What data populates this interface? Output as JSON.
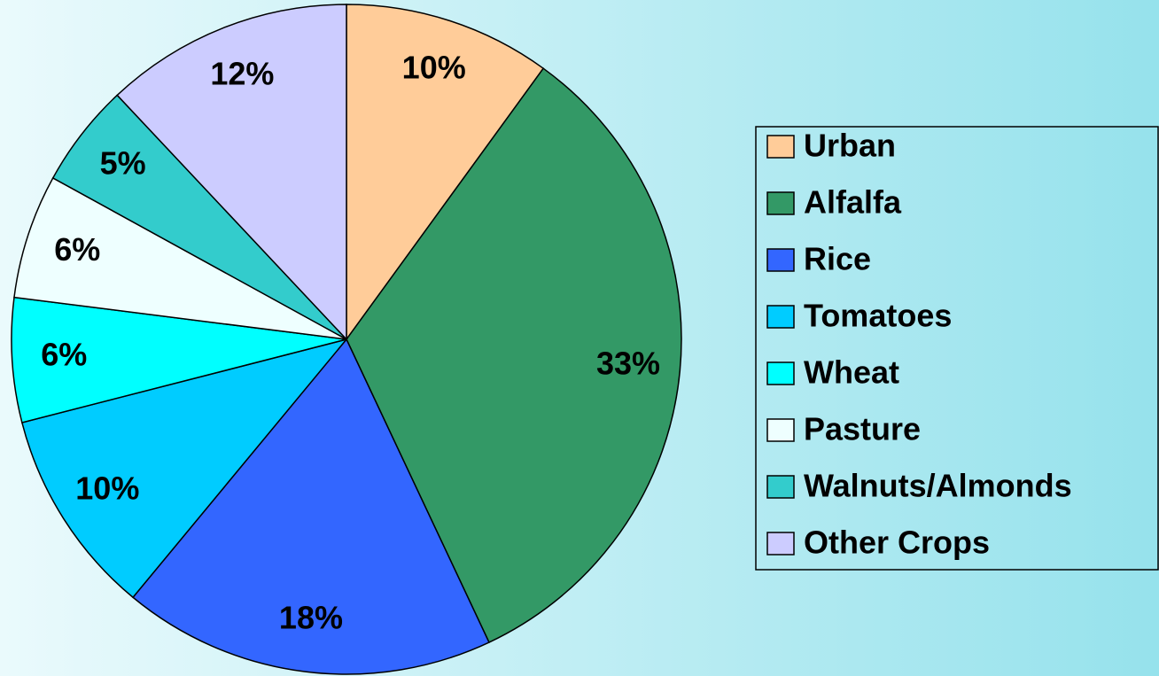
{
  "chart_data": {
    "type": "pie",
    "categories": [
      "Urban",
      "Alfalfa",
      "Rice",
      "Tomatoes",
      "Wheat",
      "Pasture",
      "Walnuts/Almonds",
      "Other Crops"
    ],
    "values": [
      10,
      33,
      18,
      10,
      6,
      6,
      5,
      12
    ],
    "value_labels": [
      "10%",
      "33%",
      "18%",
      "10%",
      "6%",
      "6%",
      "5%",
      "12%"
    ],
    "colors": [
      "#ffcc99",
      "#339966",
      "#3366ff",
      "#00ccff",
      "#00ffff",
      "#eeffff",
      "#33cccc",
      "#ccccff"
    ],
    "legend": "right"
  }
}
